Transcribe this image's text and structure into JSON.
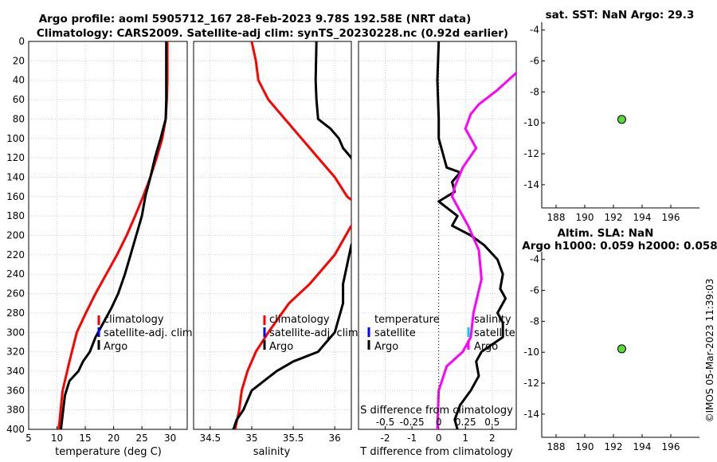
{
  "titles": {
    "main_line1": "Argo profile: aoml 5905712_167 28-Feb-2023 9.78S 192.58E (NRT data)",
    "main_line2": "Climatology: CARS2009. Satellite-adj clim: synTS_20230228.nc (0.92d earlier)",
    "sst": "sat. SST: NaN Argo: 29.3",
    "sla1": "Altim. SLA: NaN",
    "sla2": "Argo h1000: 0.059 h2000: 0.058",
    "stamp": "©IMOS 05-Mar-2023 11:39:03"
  },
  "colors": {
    "climatology": "#ff0000",
    "satellite": "#0000ff",
    "argo": "#000000",
    "salinity_diff": "#ff00ff",
    "salinity_sat": "#00ccff",
    "marker_fill": "#55dd33",
    "grid": "#cfcfcf"
  },
  "chart_data": [
    {
      "name": "temperature",
      "type": "line",
      "xlabel": "temperature (deg C)",
      "ylabel": "",
      "xlim": [
        5,
        33
      ],
      "ylim": [
        400,
        0
      ],
      "xticks": [
        5,
        10,
        15,
        20,
        25,
        30
      ],
      "yticks": [
        0,
        20,
        40,
        60,
        80,
        100,
        120,
        140,
        160,
        180,
        200,
        220,
        240,
        260,
        280,
        300,
        320,
        340,
        360,
        380,
        400
      ],
      "grid": true,
      "legend": [
        "climatology",
        "satellite-adj. clim",
        "Argo"
      ],
      "series": [
        {
          "name": "climatology",
          "color": "#ff0000",
          "x": [
            29.5,
            29.5,
            29.4,
            29.2,
            28.6,
            27.6,
            26.5,
            25.2,
            23.8,
            22.3,
            20.6,
            18.7,
            16.8,
            15.1,
            13.5,
            12.2,
            11.0,
            10.3
          ],
          "depth": [
            0,
            40,
            60,
            80,
            100,
            120,
            140,
            160,
            180,
            200,
            220,
            240,
            260,
            280,
            300,
            330,
            360,
            400
          ]
        },
        {
          "name": "Argo",
          "color": "#000000",
          "x": [
            29.3,
            29.3,
            29.3,
            29.2,
            28.3,
            27.3,
            26.5,
            25.6,
            25.0,
            24.0,
            23.0,
            22.0,
            20.8,
            19.6,
            18.2,
            16.8,
            15.8,
            14.6,
            13.8,
            12.2,
            11.4,
            11.0,
            10.7
          ],
          "depth": [
            0,
            40,
            60,
            80,
            100,
            120,
            140,
            160,
            180,
            200,
            220,
            240,
            260,
            275,
            290,
            305,
            320,
            330,
            340,
            350,
            365,
            385,
            400
          ]
        }
      ]
    },
    {
      "name": "salinity",
      "type": "line",
      "xlabel": "salinity",
      "xlim": [
        34.3,
        36.2
      ],
      "ylim": [
        400,
        0
      ],
      "xticks": [
        34.5,
        35,
        35.5,
        36
      ],
      "grid": true,
      "legend": [
        "climatology",
        "satellite-adj. clim",
        "Argo"
      ],
      "series": [
        {
          "name": "climatology",
          "color": "#ff0000",
          "x": [
            35.0,
            35.05,
            35.08,
            35.2,
            35.4,
            35.6,
            35.8,
            36.0,
            36.15,
            36.3,
            36.3,
            36.2,
            36.0,
            35.7,
            35.45,
            35.2,
            35.05,
            34.95,
            34.88,
            34.85,
            34.8
          ],
          "depth": [
            0,
            20,
            40,
            60,
            80,
            100,
            120,
            140,
            160,
            170,
            180,
            190,
            220,
            250,
            270,
            300,
            320,
            340,
            360,
            380,
            400
          ]
        },
        {
          "name": "Argo",
          "color": "#000000",
          "x": [
            35.78,
            35.77,
            35.78,
            35.8,
            35.95,
            36.05,
            36.1,
            36.2,
            36.25,
            36.25,
            36.2,
            36.15,
            36.1,
            36.1,
            36.05,
            36.0,
            35.9,
            35.8,
            35.5,
            35.3,
            35.15,
            35.0,
            34.95,
            34.9,
            34.82,
            34.78
          ],
          "depth": [
            0,
            40,
            60,
            80,
            90,
            100,
            110,
            120,
            130,
            200,
            210,
            230,
            250,
            270,
            285,
            300,
            310,
            320,
            330,
            340,
            350,
            360,
            370,
            380,
            390,
            400
          ]
        }
      ]
    },
    {
      "name": "difference",
      "type": "line",
      "xlabel": "T difference from climatology",
      "xlabel_top": "S difference from climatology",
      "xlim": [
        -3,
        2.9
      ],
      "ylim": [
        400,
        0
      ],
      "xticks": [
        -2,
        -1,
        0,
        1,
        2
      ],
      "xticks_s": [
        "-0.5",
        "-0.25",
        "0",
        "0.25",
        "0.5"
      ],
      "grid": true,
      "legend_t": [
        "temperature",
        "satellite",
        "Argo"
      ],
      "legend_s": [
        "salinity",
        "satellite",
        "Argo"
      ],
      "series": [
        {
          "name": "T diff Argo",
          "color": "#000000",
          "x": [
            0.0,
            -0.05,
            0.0,
            0.0,
            0.1,
            0.2,
            0.3,
            0.8,
            0.5,
            0.6,
            0.0,
            0.7,
            0.5,
            1.2,
            1.7,
            2.2,
            2.4,
            2.3,
            2.5,
            2.2,
            2.4,
            2.4,
            1.6,
            1.4,
            1.5,
            1.2,
            0.8,
            0.6,
            0.7
          ],
          "depth": [
            0,
            40,
            80,
            100,
            110,
            120,
            130,
            135,
            145,
            155,
            165,
            180,
            190,
            200,
            210,
            225,
            240,
            255,
            265,
            280,
            290,
            305,
            320,
            330,
            345,
            360,
            375,
            390,
            400
          ]
        },
        {
          "name": "S diff Argo",
          "color": "#ff00ff",
          "x": [
            3.0,
            2.2,
            1.5,
            1.2,
            1.0,
            1.4,
            0.9,
            0.6,
            0.5,
            0.8,
            1.1,
            1.5,
            1.6,
            1.3,
            1.2,
            0.9,
            0.3,
            0.0,
            -0.05
          ],
          "depth": [
            30,
            50,
            65,
            75,
            90,
            110,
            130,
            150,
            160,
            175,
            190,
            215,
            245,
            280,
            305,
            320,
            335,
            360,
            400
          ]
        }
      ]
    },
    {
      "name": "sst_map",
      "type": "scatter",
      "xlim": [
        187,
        198
      ],
      "ylim": [
        -15.5,
        -3.5
      ],
      "xticks": [
        188,
        190,
        192,
        194,
        196
      ],
      "yticks": [
        -4,
        -6,
        -8,
        -10,
        -12,
        -14
      ],
      "points": [
        {
          "x": 192.58,
          "y": -9.78
        }
      ]
    },
    {
      "name": "sla_map",
      "type": "scatter",
      "xlim": [
        187,
        198
      ],
      "ylim": [
        -15.5,
        -3.5
      ],
      "xticks": [
        188,
        190,
        192,
        194,
        196
      ],
      "yticks": [
        -4,
        -6,
        -8,
        -10,
        -12,
        -14
      ],
      "points": [
        {
          "x": 192.58,
          "y": -9.78
        }
      ]
    }
  ]
}
